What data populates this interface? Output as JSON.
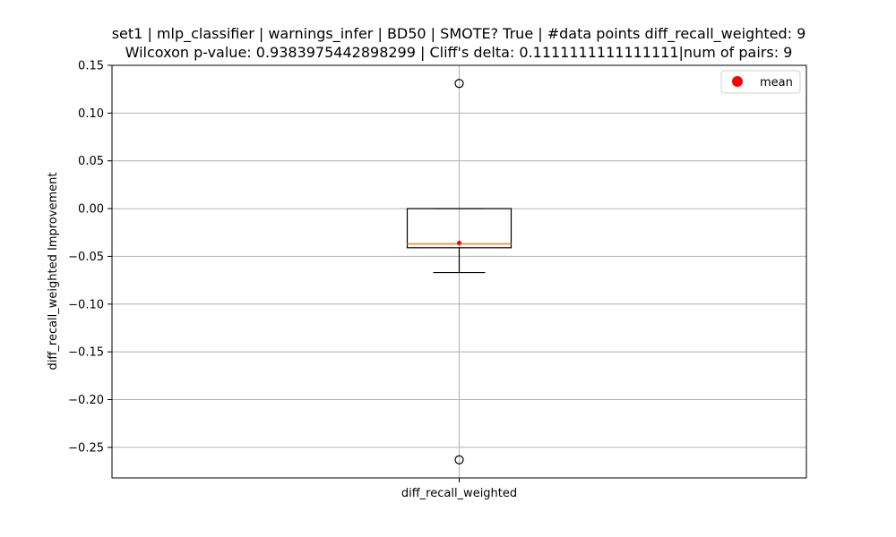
{
  "chart_data": {
    "type": "box",
    "title_lines": [
      "set1 | mlp_classifier | warnings_infer | BD50 | SMOTE? True | #data points diff_recall_weighted: 9",
      "Wilcoxon p-value: 0.9383975442898299 | Cliff's delta: 0.1111111111111111|num of pairs: 9"
    ],
    "xlabel": "",
    "ylabel": "diff_recall_weighted Improvement",
    "categories": [
      "diff_recall_weighted"
    ],
    "ylim": [
      -0.282,
      0.15
    ],
    "yticks": [
      0.15,
      0.1,
      0.05,
      0.0,
      -0.05,
      -0.1,
      -0.15,
      -0.2,
      -0.25
    ],
    "ytick_labels": [
      "0.15",
      "0.10",
      "0.05",
      "0.00",
      "−0.05",
      "−0.10",
      "−0.15",
      "−0.20",
      "−0.25"
    ],
    "grid": true,
    "legend": {
      "position": "top-right",
      "entries": [
        "mean"
      ]
    },
    "boxes": [
      {
        "name": "diff_recall_weighted",
        "q1": -0.041,
        "median": -0.037,
        "q3": 0.0,
        "whisker_low": -0.067,
        "whisker_high": 0.0,
        "mean": -0.036,
        "outliers": [
          0.131,
          -0.263
        ]
      }
    ],
    "colors": {
      "median": "#ff7f0e",
      "mean": "#ff0000",
      "grid": "#b0b0b0",
      "box": "#000000"
    }
  }
}
